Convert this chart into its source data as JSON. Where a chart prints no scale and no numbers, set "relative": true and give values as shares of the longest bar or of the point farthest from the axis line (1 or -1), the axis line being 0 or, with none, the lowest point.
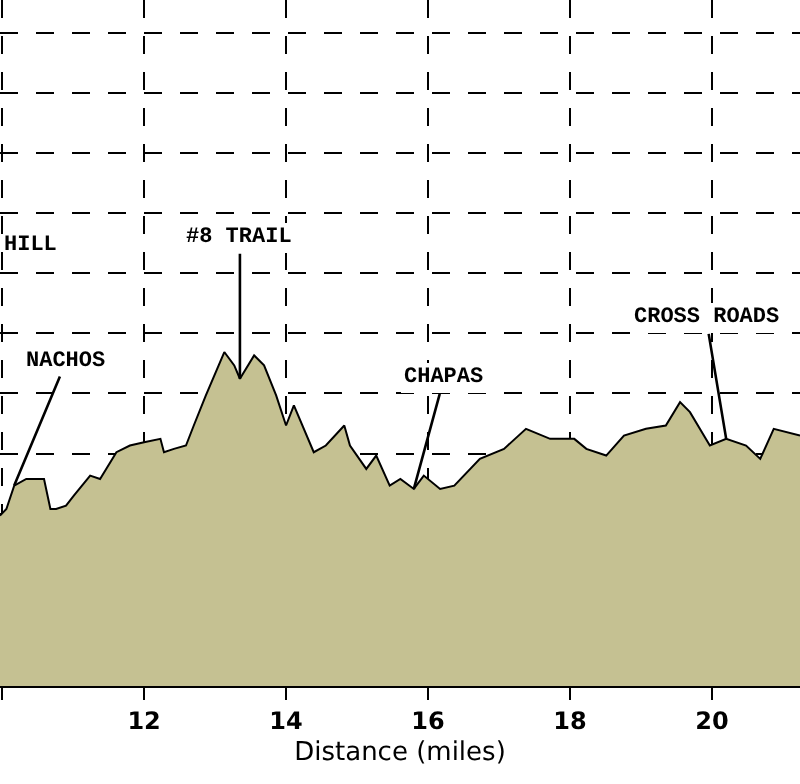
{
  "chart_data": {
    "type": "area",
    "relative": true,
    "xlabel": "Distance (miles)",
    "xlim": [
      9.97,
      21.24
    ],
    "xticks": [
      {
        "value": 10,
        "label": null
      },
      12,
      14,
      16,
      18,
      20
    ],
    "grid": true,
    "legend": false,
    "annotations": [
      "HILL",
      {
        "text": "NACHOS",
        "x": 10.17,
        "y": 0.6
      },
      {
        "text": "#8 TRAIL",
        "x": 13.35,
        "y": 0.92
      },
      {
        "text": "CHAPAS",
        "x": 15.8,
        "y": 0.59
      },
      {
        "text": "CROSS ROADS",
        "x": 20.2,
        "y": 0.74
      }
    ],
    "series": [
      {
        "color": "#c5c192",
        "x": [
          9.97,
          10.06,
          10.17,
          10.34,
          10.59,
          10.68,
          10.76,
          10.9,
          11.01,
          11.24,
          11.38,
          11.61,
          11.8,
          12.0,
          12.23,
          12.28,
          12.42,
          12.59,
          12.7,
          12.87,
          13.13,
          13.27,
          13.35,
          13.55,
          13.69,
          13.86,
          14.0,
          14.11,
          14.39,
          14.56,
          14.82,
          14.9,
          15.13,
          15.27,
          15.46,
          15.61,
          15.8,
          15.94,
          16.17,
          16.37,
          16.73,
          17.07,
          17.38,
          17.72,
          18.06,
          18.23,
          18.51,
          18.76,
          19.07,
          19.35,
          19.55,
          19.69,
          19.97,
          20.2,
          20.48,
          20.68,
          20.87,
          21.24
        ],
        "values": [
          0.51,
          0.53,
          0.6,
          0.62,
          0.62,
          0.53,
          0.53,
          0.54,
          0.57,
          0.63,
          0.62,
          0.7,
          0.72,
          0.73,
          0.74,
          0.7,
          0.71,
          0.72,
          0.78,
          0.87,
          1.0,
          0.96,
          0.92,
          0.99,
          0.96,
          0.87,
          0.78,
          0.84,
          0.7,
          0.72,
          0.78,
          0.72,
          0.65,
          0.69,
          0.6,
          0.62,
          0.59,
          0.63,
          0.59,
          0.6,
          0.68,
          0.71,
          0.77,
          0.74,
          0.74,
          0.71,
          0.69,
          0.75,
          0.77,
          0.78,
          0.85,
          0.82,
          0.72,
          0.74,
          0.72,
          0.68,
          0.77,
          0.75
        ]
      }
    ]
  }
}
